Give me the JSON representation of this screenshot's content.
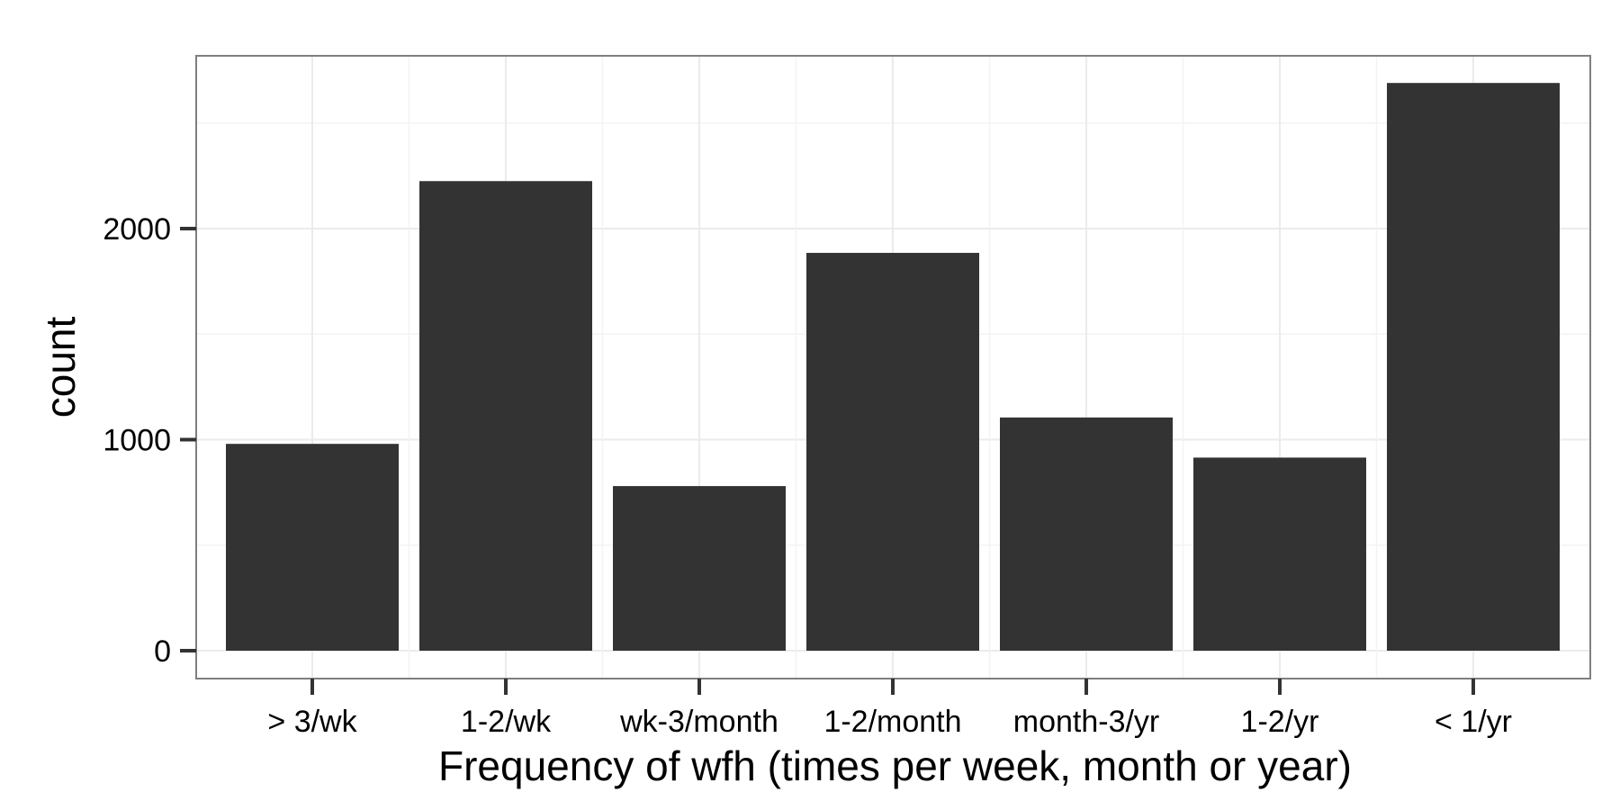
{
  "chart_data": {
    "type": "bar",
    "title": "",
    "xlabel": "Frequency of wfh (times per week, month or year)",
    "ylabel": "count",
    "categories": [
      ">  3/wk",
      "1-2/wk",
      "wk-3/month",
      "1-2/month",
      "month-3/yr",
      "1-2/yr",
      "< 1/yr"
    ],
    "values": [
      980,
      2225,
      780,
      1885,
      1105,
      915,
      2690
    ],
    "ylim": [
      0,
      2800
    ],
    "yticks": [
      0,
      1000,
      2000
    ],
    "ytick_labels": [
      "0",
      "1000",
      "2000"
    ],
    "ygrid_minor": [
      500,
      1500,
      2500
    ],
    "grid": true,
    "legend": "none",
    "colors": {
      "bar": "#333333",
      "background": "#ffffff",
      "grid": "#ebebeb",
      "panel_border": "#7f7f7f",
      "axis_tick": "#333333"
    }
  }
}
